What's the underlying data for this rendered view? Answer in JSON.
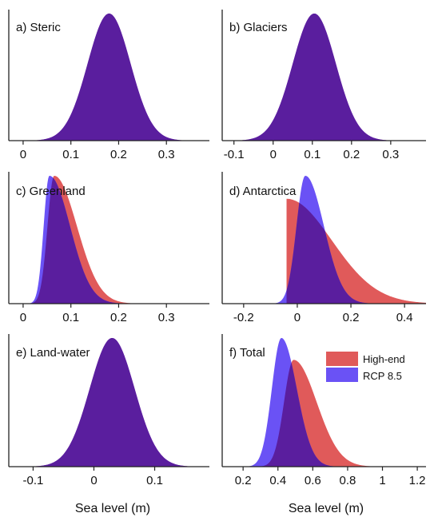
{
  "colors": {
    "high_end": "#e05a5a",
    "rcp85": "#6a52f5",
    "overlap": "#5a1e9e",
    "axis": "#222222"
  },
  "legend": {
    "high_end_label": "High-end",
    "rcp85_label": "RCP 8.5"
  },
  "chart_data": [
    {
      "id": "a",
      "type": "area",
      "title": "a) Steric",
      "xlabel": "",
      "xlim": [
        -0.03,
        0.39
      ],
      "xticks": [
        0,
        0.1,
        0.2,
        0.3
      ],
      "ticklabels": [
        "0",
        "0.1",
        "0.2",
        "0.3"
      ],
      "series": [
        {
          "name": "High-end",
          "mode": 0.18,
          "width": 0.045,
          "skew": 1.0
        },
        {
          "name": "RCP 8.5",
          "mode": 0.18,
          "width": 0.045,
          "skew": 1.0
        }
      ]
    },
    {
      "id": "b",
      "type": "area",
      "title": "b) Glaciers",
      "xlabel": "",
      "xlim": [
        -0.13,
        0.39
      ],
      "xticks": [
        -0.1,
        0,
        0.1,
        0.2,
        0.3
      ],
      "ticklabels": [
        "-0.1",
        "0",
        "0.1",
        "0.2",
        "0.3"
      ],
      "series": [
        {
          "name": "High-end",
          "mode": 0.105,
          "width": 0.055,
          "skew": 1.0
        },
        {
          "name": "RCP 8.5",
          "mode": 0.105,
          "width": 0.055,
          "skew": 1.0
        }
      ]
    },
    {
      "id": "c",
      "type": "area",
      "title": "c) Greenland",
      "xlabel": "",
      "xlim": [
        -0.03,
        0.39
      ],
      "xticks": [
        0,
        0.1,
        0.2,
        0.3
      ],
      "ticklabels": [
        "0",
        "0.1",
        "0.2",
        "0.3"
      ],
      "series": [
        {
          "name": "High-end",
          "mode": 0.065,
          "width": 0.014,
          "skew": 3.4
        },
        {
          "name": "RCP 8.5",
          "mode": 0.055,
          "width": 0.012,
          "skew": 3.6
        }
      ]
    },
    {
      "id": "d",
      "type": "area",
      "title": "d) Antarctica",
      "xlabel": "",
      "xlim": [
        -0.28,
        0.48
      ],
      "xticks": [
        -0.2,
        0,
        0.2,
        0.4
      ],
      "ticklabels": [
        "-0.2",
        "0",
        "0.2",
        "0.4"
      ],
      "series": [
        {
          "name": "High-end",
          "mode": -0.04,
          "width": 0.012,
          "skew": 14.0,
          "cutoff": -0.04,
          "peak": 0.82
        },
        {
          "name": "RCP 8.5",
          "mode": 0.03,
          "width": 0.033,
          "skew": 2.1
        }
      ]
    },
    {
      "id": "e",
      "type": "area",
      "title": "e) Land-water",
      "xlabel": "Sea level (m)",
      "xlim": [
        -0.14,
        0.19
      ],
      "xticks": [
        -0.1,
        0,
        0.1
      ],
      "ticklabels": [
        "-0.1",
        "0",
        "0.1"
      ],
      "series": [
        {
          "name": "High-end",
          "mode": 0.03,
          "width": 0.037,
          "skew": 1.0
        },
        {
          "name": "RCP 8.5",
          "mode": 0.03,
          "width": 0.037,
          "skew": 1.0
        }
      ]
    },
    {
      "id": "f",
      "type": "area",
      "title": "f) Total",
      "xlabel": "Sea level (m)",
      "xlim": [
        0.08,
        1.25
      ],
      "xticks": [
        0.2,
        0.4,
        0.6,
        0.8,
        1,
        1.2
      ],
      "ticklabels": [
        "0.2",
        "0.4",
        "0.6",
        "0.8",
        "1",
        "1.2"
      ],
      "legend": "top-right",
      "series": [
        {
          "name": "High-end",
          "mode": 0.49,
          "width": 0.055,
          "skew": 2.4,
          "peak": 0.83
        },
        {
          "name": "RCP 8.5",
          "mode": 0.42,
          "width": 0.055,
          "skew": 1.6
        }
      ]
    }
  ]
}
